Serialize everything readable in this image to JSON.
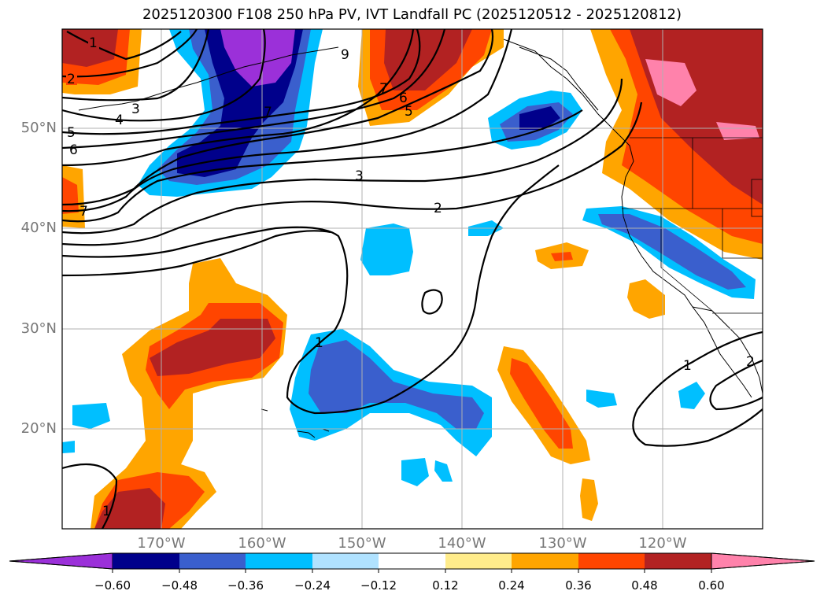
{
  "title": "2025120300 F108 250 hPa PV, IVT Landfall PC (2025120512 - 2025120812)",
  "lat_labels": [
    "50°N",
    "40°N",
    "30°N",
    "20°N"
  ],
  "lon_labels": [
    "170°W",
    "160°W",
    "150°W",
    "140°W",
    "130°W",
    "120°W"
  ],
  "contour_labels": [
    "1",
    "2",
    "3",
    "4",
    "5",
    "6",
    "7",
    "9"
  ],
  "colorbar": {
    "ticks": [
      "−0.60",
      "−0.48",
      "−0.36",
      "−0.24",
      "−0.12",
      "0.12",
      "0.24",
      "0.36",
      "0.48",
      "0.60"
    ],
    "colors": [
      "#9b30d9",
      "#00008b",
      "#3a5fcd",
      "#00bfff",
      "#b0e2ff",
      "#ffffff",
      "#ffec8b",
      "#ffa500",
      "#ff4500",
      "#b22222",
      "#ff82ab"
    ]
  }
}
